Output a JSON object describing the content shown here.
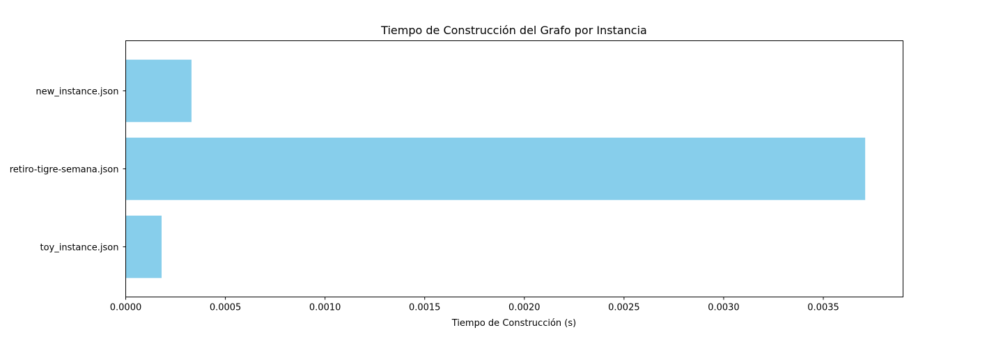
{
  "chart_data": {
    "type": "bar",
    "orientation": "horizontal",
    "title": "Tiempo de Construcción del Grafo por Instancia",
    "xlabel": "Tiempo de Construcción (s)",
    "ylabel": "",
    "categories": [
      "new_instance.json",
      "retiro-tigre-semana.json",
      "toy_instance.json"
    ],
    "values": [
      0.00033,
      0.00371,
      0.00018
    ],
    "xlim": [
      0,
      0.0039
    ],
    "xticks": [
      0.0,
      0.0005,
      0.001,
      0.0015,
      0.002,
      0.0025,
      0.003,
      0.0035
    ],
    "xtick_labels": [
      "0.0000",
      "0.0005",
      "0.0010",
      "0.0015",
      "0.0020",
      "0.0025",
      "0.0030",
      "0.0035"
    ],
    "bar_color": "#87ceeb",
    "grid": false,
    "legend": false
  }
}
